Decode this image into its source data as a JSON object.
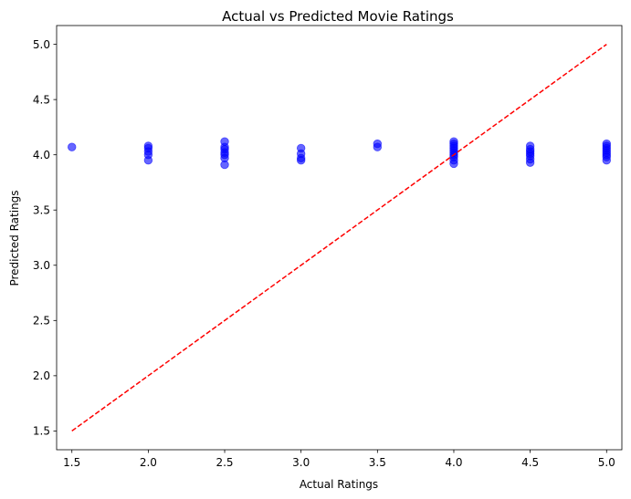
{
  "chart_data": {
    "type": "scatter",
    "title": "Actual vs Predicted Movie Ratings",
    "xlabel": "Actual Ratings",
    "ylabel": "Predicted Ratings",
    "xlim": [
      1.4,
      5.1
    ],
    "ylim": [
      1.33,
      5.17
    ],
    "xticks": [
      1.5,
      2.0,
      2.5,
      3.0,
      3.5,
      4.0,
      4.5,
      5.0
    ],
    "yticks": [
      1.5,
      2.0,
      2.5,
      3.0,
      3.5,
      4.0,
      4.5,
      5.0
    ],
    "xtick_labels": [
      "1.5",
      "2.0",
      "2.5",
      "3.0",
      "3.5",
      "4.0",
      "4.5",
      "5.0"
    ],
    "ytick_labels": [
      "1.5",
      "2.0",
      "2.5",
      "3.0",
      "3.5",
      "4.0",
      "4.5",
      "5.0"
    ],
    "grid": false,
    "colors": {
      "points": "#0000ff",
      "reference_line": "#ff0000",
      "axes": "#000000"
    },
    "series": [
      {
        "kind": "scatter",
        "points": [
          [
            1.5,
            4.07
          ],
          [
            2.0,
            3.95
          ],
          [
            2.0,
            4.0
          ],
          [
            2.0,
            4.03
          ],
          [
            2.0,
            4.06
          ],
          [
            2.0,
            4.08
          ],
          [
            2.5,
            3.91
          ],
          [
            2.5,
            3.97
          ],
          [
            2.5,
            4.0
          ],
          [
            2.5,
            4.02
          ],
          [
            2.5,
            4.05
          ],
          [
            2.5,
            4.07
          ],
          [
            2.5,
            4.12
          ],
          [
            3.0,
            3.95
          ],
          [
            3.0,
            3.97
          ],
          [
            3.0,
            4.01
          ],
          [
            3.0,
            4.06
          ],
          [
            3.5,
            4.07
          ],
          [
            3.5,
            4.1
          ],
          [
            4.0,
            3.92
          ],
          [
            4.0,
            3.95
          ],
          [
            4.0,
            3.98
          ],
          [
            4.0,
            4.0
          ],
          [
            4.0,
            4.02
          ],
          [
            4.0,
            4.04
          ],
          [
            4.0,
            4.06
          ],
          [
            4.0,
            4.08
          ],
          [
            4.0,
            4.1
          ],
          [
            4.0,
            4.12
          ],
          [
            4.5,
            3.93
          ],
          [
            4.5,
            3.96
          ],
          [
            4.5,
            3.99
          ],
          [
            4.5,
            4.01
          ],
          [
            4.5,
            4.03
          ],
          [
            4.5,
            4.05
          ],
          [
            4.5,
            4.08
          ],
          [
            5.0,
            3.95
          ],
          [
            5.0,
            3.98
          ],
          [
            5.0,
            4.0
          ],
          [
            5.0,
            4.02
          ],
          [
            5.0,
            4.04
          ],
          [
            5.0,
            4.06
          ],
          [
            5.0,
            4.08
          ],
          [
            5.0,
            4.1
          ]
        ]
      },
      {
        "kind": "line",
        "style": "dashed",
        "points": [
          [
            1.5,
            1.5
          ],
          [
            5.0,
            5.0
          ]
        ]
      }
    ]
  }
}
